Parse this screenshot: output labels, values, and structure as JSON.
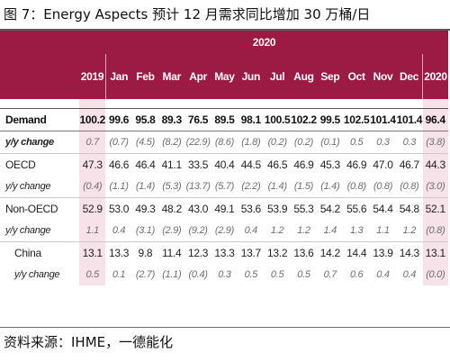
{
  "title": "图 7：Energy Aspects 预计 12 月需求同比增加 30 万桶/日",
  "source": "资料来源：IHME，一德能化",
  "colors": {
    "header_bg": "#9c1b45",
    "highlight_bg": "#f6e2e8"
  },
  "table": {
    "group_header": "2020",
    "columns": [
      "2019",
      "Jan",
      "Feb",
      "Mar",
      "Apr",
      "May",
      "Jun",
      "Jul",
      "Aug",
      "Sep",
      "Oct",
      "Nov",
      "Dec",
      "2020"
    ],
    "rows": [
      {
        "label": "Demand",
        "values": [
          "100.2",
          "99.6",
          "95.8",
          "89.3",
          "76.5",
          "89.5",
          "98.1",
          "100.5",
          "102.2",
          "99.5",
          "102.5",
          "101.4",
          "101.4",
          "96.4"
        ]
      },
      {
        "label": "y/y change",
        "values": [
          "0.7",
          "(0.7)",
          "(4.5)",
          "(8.2)",
          "(22.9)",
          "(8.6)",
          "(1.8)",
          "(0.2)",
          "(0.2)",
          "(0.1)",
          "0.5",
          "0.3",
          "0.3",
          "(3.8)"
        ]
      },
      {
        "label": "OECD",
        "values": [
          "47.3",
          "46.6",
          "46.4",
          "41.1",
          "33.5",
          "40.4",
          "44.5",
          "46.5",
          "46.9",
          "45.3",
          "46.9",
          "47.0",
          "46.7",
          "44.3"
        ]
      },
      {
        "label": "y/y change",
        "values": [
          "(0.4)",
          "(1.1)",
          "(1.4)",
          "(5.3)",
          "(13.7)",
          "(5.7)",
          "(2.2)",
          "(1.4)",
          "(1.5)",
          "(1.4)",
          "(0.8)",
          "(0.8)",
          "(0.8)",
          "(3.0)"
        ]
      },
      {
        "label": "Non-OECD",
        "values": [
          "52.9",
          "53.0",
          "49.3",
          "48.2",
          "43.0",
          "49.1",
          "53.6",
          "53.9",
          "55.3",
          "54.2",
          "55.6",
          "54.4",
          "54.8",
          "52.1"
        ]
      },
      {
        "label": "y/y change",
        "values": [
          "1.1",
          "0.4",
          "(3.1)",
          "(2.9)",
          "(9.2)",
          "(2.9)",
          "0.4",
          "1.2",
          "1.2",
          "1.4",
          "1.3",
          "1.1",
          "1.2",
          "(0.8)"
        ]
      },
      {
        "label": "China",
        "values": [
          "13.1",
          "13.3",
          "9.8",
          "11.4",
          "12.3",
          "13.3",
          "13.7",
          "13.2",
          "13.6",
          "14.2",
          "14.4",
          "13.9",
          "14.3",
          "13.1"
        ]
      },
      {
        "label": "y/y change",
        "values": [
          "0.5",
          "0.1",
          "(2.7)",
          "(1.1)",
          "(0.4)",
          "0.3",
          "0.5",
          "0.5",
          "0.5",
          "0.7",
          "0.6",
          "0.4",
          "0.4",
          "(0.0)"
        ]
      }
    ]
  }
}
